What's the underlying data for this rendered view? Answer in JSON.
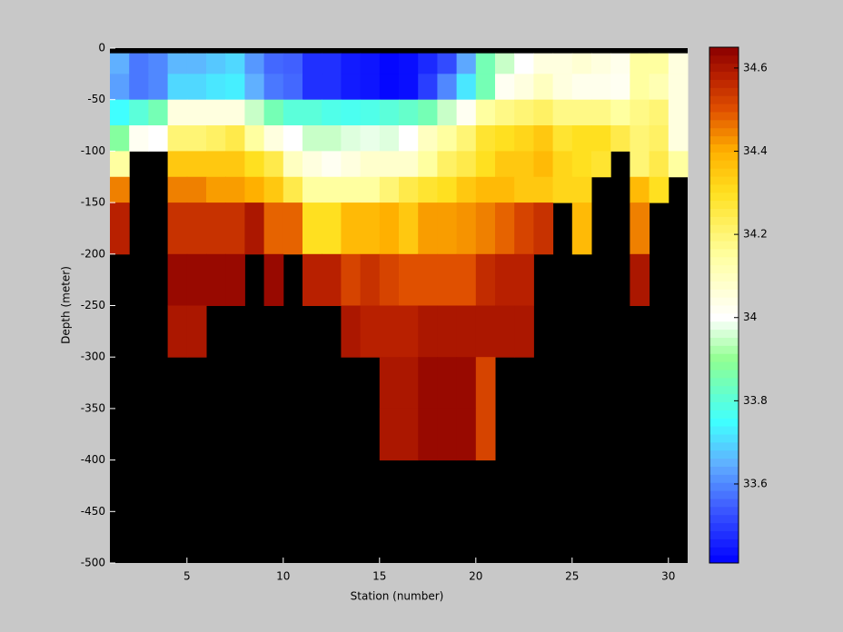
{
  "chart_data": {
    "type": "heatmap",
    "x_label": "Station (number)",
    "y_label": "Depth (meter)",
    "xlim": [
      1,
      31
    ],
    "ylim": [
      -500,
      0
    ],
    "xticks": [
      5,
      10,
      15,
      20,
      25,
      30
    ],
    "yticks": [
      0,
      -50,
      -100,
      -150,
      -200,
      -250,
      -300,
      -350,
      -400,
      -450,
      -500
    ],
    "x_edges": [
      1,
      2,
      3,
      4,
      5,
      6,
      7,
      8,
      9,
      10,
      11,
      12,
      13,
      14,
      15,
      16,
      17,
      18,
      19,
      20,
      21,
      22,
      23,
      24,
      25,
      26,
      27,
      28,
      29,
      30,
      31
    ],
    "y_edges": [
      -5,
      -25,
      -50,
      -75,
      -100,
      -125,
      -150,
      -200,
      -250,
      -300,
      -350,
      -400
    ],
    "values": [
      [
        33.65,
        33.58,
        33.6,
        33.66,
        33.66,
        33.68,
        33.7,
        33.62,
        33.56,
        33.55,
        33.48,
        33.48,
        33.45,
        33.44,
        33.42,
        33.43,
        33.47,
        33.52,
        33.64,
        33.85,
        33.95,
        34.0,
        34.05,
        34.05,
        34.07,
        34.05,
        34.03,
        34.15,
        34.15,
        34.05
      ],
      [
        33.63,
        33.58,
        33.6,
        33.7,
        33.7,
        33.72,
        33.73,
        33.65,
        33.58,
        33.56,
        33.48,
        33.48,
        33.45,
        33.44,
        33.42,
        33.43,
        33.5,
        33.6,
        33.72,
        33.85,
        34.02,
        34.05,
        34.1,
        34.05,
        34.03,
        34.03,
        34.02,
        34.15,
        34.12,
        34.05
      ],
      [
        33.75,
        33.8,
        33.85,
        34.05,
        34.05,
        34.05,
        34.05,
        33.95,
        33.85,
        33.8,
        33.8,
        33.78,
        33.77,
        33.78,
        33.8,
        33.82,
        33.85,
        33.95,
        34.02,
        34.15,
        34.18,
        34.2,
        34.22,
        34.18,
        34.18,
        34.18,
        34.15,
        34.18,
        34.2,
        34.05
      ],
      [
        33.88,
        34.02,
        34.0,
        34.2,
        34.2,
        34.22,
        34.25,
        34.15,
        34.05,
        34.0,
        33.95,
        33.95,
        33.97,
        33.98,
        33.97,
        34.0,
        34.1,
        34.15,
        34.2,
        34.28,
        34.3,
        34.32,
        34.35,
        34.28,
        34.3,
        34.3,
        34.25,
        34.2,
        34.22,
        34.05
      ],
      [
        34.15,
        null,
        null,
        34.35,
        34.35,
        34.35,
        34.35,
        34.3,
        34.25,
        34.1,
        34.05,
        34.02,
        34.05,
        34.08,
        34.08,
        34.08,
        34.15,
        34.22,
        34.25,
        34.3,
        34.35,
        34.35,
        34.38,
        34.32,
        34.3,
        34.28,
        null,
        34.2,
        34.25,
        34.15
      ],
      [
        34.45,
        null,
        null,
        34.45,
        34.45,
        34.42,
        34.42,
        34.4,
        34.35,
        34.25,
        34.15,
        34.15,
        34.15,
        34.15,
        34.2,
        34.25,
        34.28,
        34.3,
        34.35,
        34.38,
        34.38,
        34.35,
        34.35,
        34.32,
        34.32,
        null,
        null,
        34.38,
        34.3,
        null
      ],
      [
        34.58,
        null,
        null,
        34.55,
        34.55,
        34.55,
        34.55,
        34.6,
        34.48,
        34.48,
        34.3,
        34.3,
        34.38,
        34.38,
        34.4,
        34.35,
        34.42,
        34.42,
        34.43,
        34.45,
        34.48,
        34.52,
        34.55,
        null,
        34.38,
        null,
        null,
        34.45,
        null,
        null
      ],
      [
        null,
        null,
        null,
        34.63,
        34.63,
        34.63,
        34.63,
        null,
        34.63,
        null,
        34.58,
        34.58,
        34.52,
        34.55,
        34.52,
        34.5,
        34.5,
        34.5,
        34.5,
        34.56,
        34.58,
        34.58,
        null,
        null,
        null,
        null,
        null,
        34.6,
        null,
        null
      ],
      [
        null,
        null,
        null,
        34.6,
        34.6,
        null,
        null,
        null,
        null,
        null,
        null,
        null,
        34.6,
        34.58,
        34.58,
        34.58,
        34.6,
        34.6,
        34.6,
        34.6,
        34.6,
        34.6,
        null,
        null,
        null,
        null,
        null,
        null,
        null,
        null
      ],
      [
        null,
        null,
        null,
        null,
        null,
        null,
        null,
        null,
        null,
        null,
        null,
        null,
        null,
        null,
        34.6,
        34.6,
        34.63,
        34.63,
        34.63,
        34.52,
        null,
        null,
        null,
        null,
        null,
        null,
        null,
        null,
        null,
        null
      ],
      [
        null,
        null,
        null,
        null,
        null,
        null,
        null,
        null,
        null,
        null,
        null,
        null,
        null,
        null,
        34.6,
        34.6,
        34.63,
        34.63,
        34.63,
        34.52,
        null,
        null,
        null,
        null,
        null,
        null,
        null,
        null,
        null,
        null
      ]
    ],
    "background": "#000000",
    "clim": [
      33.41,
      34.65
    ],
    "cticks": [
      33.6,
      33.8,
      34,
      34.2,
      34.4,
      34.6
    ],
    "colormap": [
      {
        "value": 33.41,
        "color": "#0000ff"
      },
      {
        "value": 33.55,
        "color": "#4060ff"
      },
      {
        "value": 33.65,
        "color": "#60b0ff"
      },
      {
        "value": 33.75,
        "color": "#40ffff"
      },
      {
        "value": 33.9,
        "color": "#90ff90"
      },
      {
        "value": 34.0,
        "color": "#ffffff"
      },
      {
        "value": 34.15,
        "color": "#ffffa0"
      },
      {
        "value": 34.3,
        "color": "#ffe020"
      },
      {
        "value": 34.4,
        "color": "#ffb000"
      },
      {
        "value": 34.5,
        "color": "#e05000"
      },
      {
        "value": 34.58,
        "color": "#b82000"
      },
      {
        "value": 34.65,
        "color": "#8b0000"
      }
    ]
  }
}
